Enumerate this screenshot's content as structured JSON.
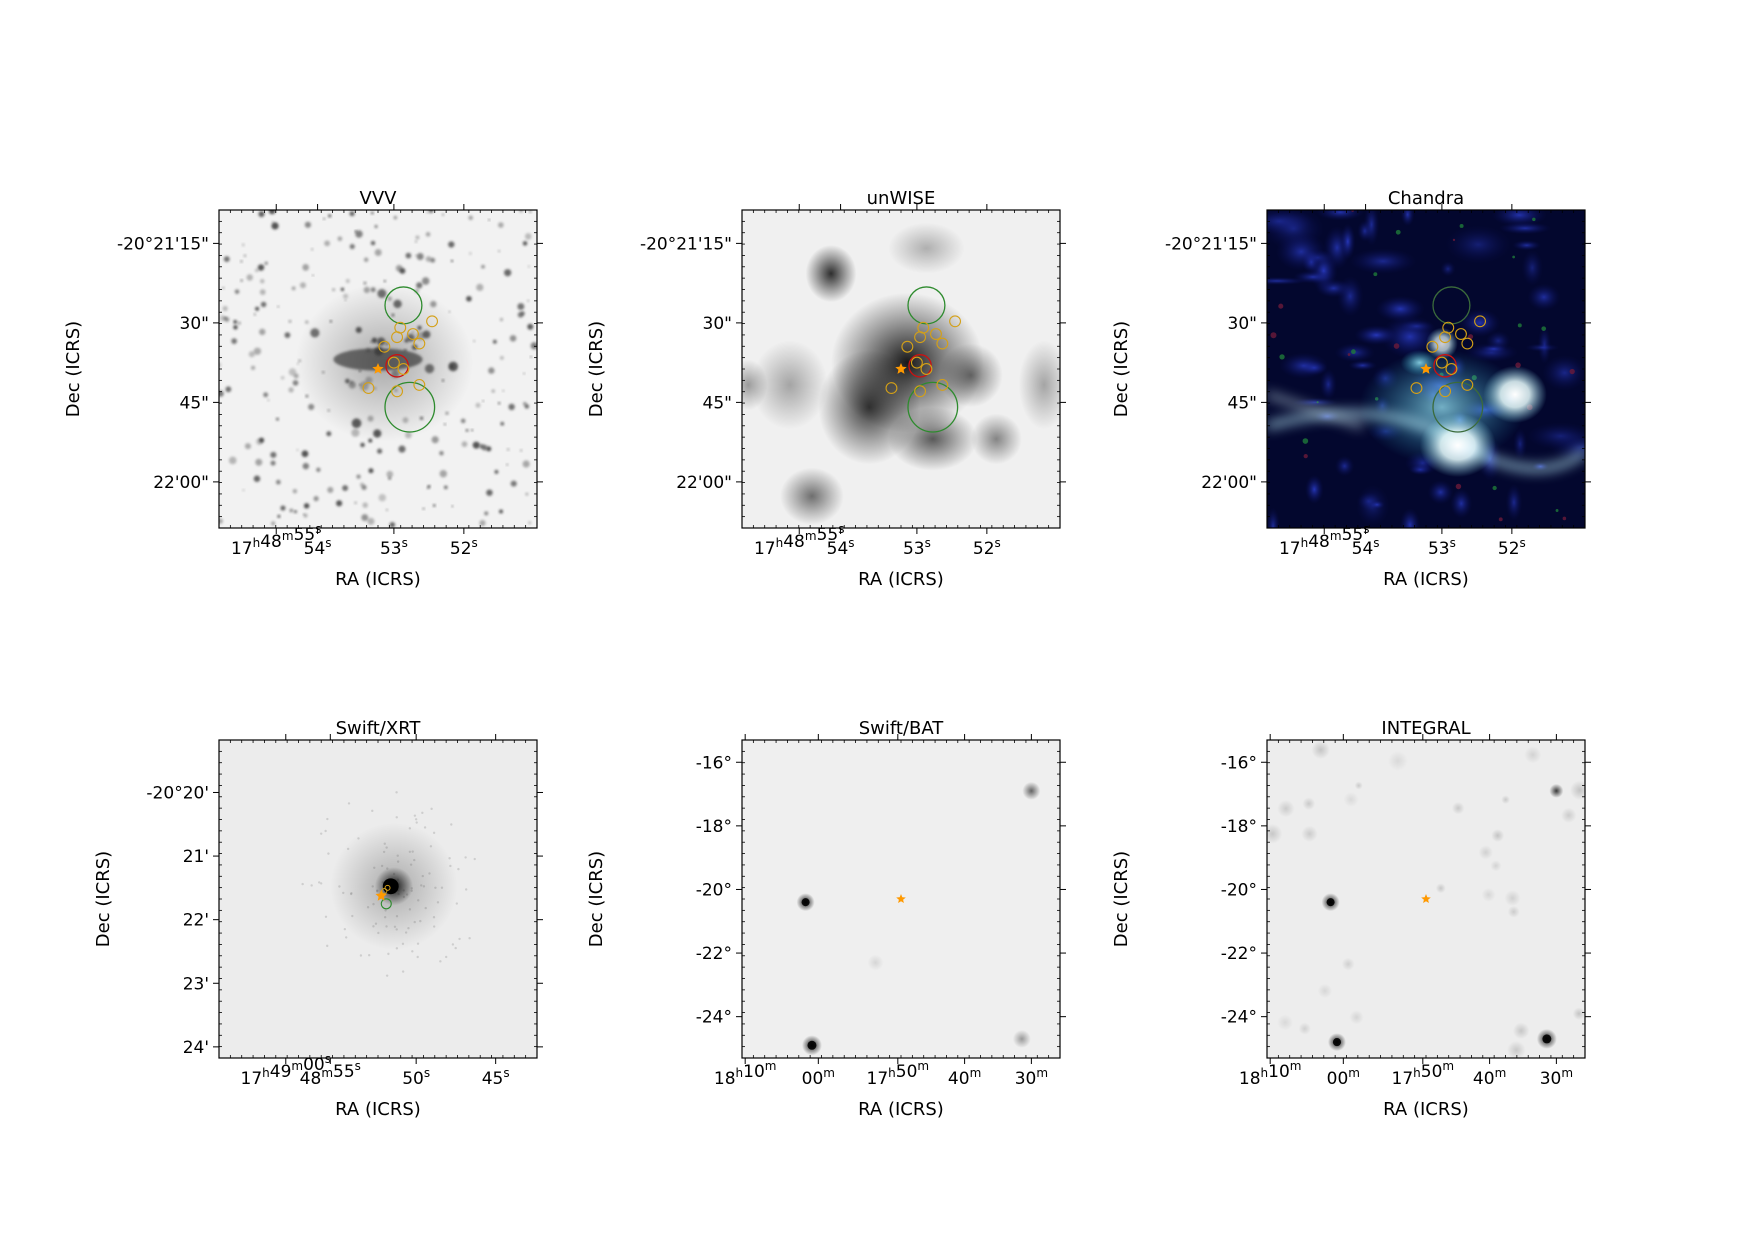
{
  "figure": {
    "panels": [
      {
        "id": "vvv",
        "title": "VVV",
        "image_style": "grayscale-starfield",
        "xlabel": "RA (ICRS)",
        "ylabel": "Dec (ICRS)",
        "yticks": [
          {
            "label": "-20°21'15\"",
            "sup": []
          },
          {
            "label": "30\"",
            "sup": []
          },
          {
            "label": "45\"",
            "sup": []
          },
          {
            "label": "22'00\"",
            "sup": []
          }
        ],
        "xticks": [
          {
            "parts": [
              [
                "17",
                "n"
              ],
              [
                "h",
                "s"
              ],
              [
                "48",
                "n"
              ],
              [
                "m",
                "s"
              ],
              [
                "55",
                "n"
              ],
              [
                "s",
                "s"
              ]
            ]
          },
          {
            "parts": [
              [
                "54",
                "n"
              ],
              [
                "s",
                "s"
              ]
            ]
          },
          {
            "parts": [
              [
                "53",
                "n"
              ],
              [
                "s",
                "s"
              ]
            ]
          },
          {
            "parts": [
              [
                "52",
                "n"
              ],
              [
                "s",
                "s"
              ]
            ]
          }
        ]
      },
      {
        "id": "unwise",
        "title": "unWISE",
        "image_style": "grayscale-smooth",
        "xlabel": "RA (ICRS)",
        "ylabel": "Dec (ICRS)",
        "yticks": [
          {
            "label": "-20°21'15\""
          },
          {
            "label": "30\""
          },
          {
            "label": "45\""
          },
          {
            "label": "22'00\""
          }
        ],
        "xticks": [
          {
            "parts": [
              [
                "17",
                "n"
              ],
              [
                "h",
                "s"
              ],
              [
                "48",
                "n"
              ],
              [
                "m",
                "s"
              ],
              [
                "55",
                "n"
              ],
              [
                "s",
                "s"
              ]
            ]
          },
          {
            "parts": [
              [
                "54",
                "n"
              ],
              [
                "s",
                "s"
              ]
            ]
          },
          {
            "parts": [
              [
                "53",
                "n"
              ],
              [
                "s",
                "s"
              ]
            ]
          },
          {
            "parts": [
              [
                "52",
                "n"
              ],
              [
                "s",
                "s"
              ]
            ]
          }
        ]
      },
      {
        "id": "chandra",
        "title": "Chandra",
        "image_style": "rgb-xray",
        "xlabel": "RA (ICRS)",
        "ylabel": "Dec (ICRS)",
        "yticks": [
          {
            "label": "-20°21'15\""
          },
          {
            "label": "30\""
          },
          {
            "label": "45\""
          },
          {
            "label": "22'00\""
          }
        ],
        "xticks": [
          {
            "parts": [
              [
                "17",
                "n"
              ],
              [
                "h",
                "s"
              ],
              [
                "48",
                "n"
              ],
              [
                "m",
                "s"
              ],
              [
                "55",
                "n"
              ],
              [
                "s",
                "s"
              ]
            ]
          },
          {
            "parts": [
              [
                "54",
                "n"
              ],
              [
                "s",
                "s"
              ]
            ]
          },
          {
            "parts": [
              [
                "53",
                "n"
              ],
              [
                "s",
                "s"
              ]
            ]
          },
          {
            "parts": [
              [
                "52",
                "n"
              ],
              [
                "s",
                "s"
              ]
            ]
          }
        ]
      },
      {
        "id": "swift-xrt",
        "title": "Swift/XRT",
        "image_style": "grayscale-psf",
        "xlabel": "RA (ICRS)",
        "ylabel": "Dec (ICRS)",
        "yticks": [
          {
            "label": "-20°20'"
          },
          {
            "label": "21'"
          },
          {
            "label": "22'"
          },
          {
            "label": "23'"
          },
          {
            "label": "24'"
          }
        ],
        "xticks": [
          {
            "parts": [
              [
                "17",
                "n"
              ],
              [
                "h",
                "s"
              ],
              [
                "49",
                "n"
              ],
              [
                "m",
                "s"
              ],
              [
                "00",
                "n"
              ],
              [
                "s",
                "s"
              ]
            ]
          },
          {
            "parts": [
              [
                "48",
                "n"
              ],
              [
                "m",
                "s"
              ],
              [
                "55",
                "n"
              ],
              [
                "s",
                "s"
              ]
            ]
          },
          {
            "parts": [
              [
                "50",
                "n"
              ],
              [
                "s",
                "s"
              ]
            ]
          },
          {
            "parts": [
              [
                "45",
                "n"
              ],
              [
                "s",
                "s"
              ]
            ]
          }
        ]
      },
      {
        "id": "swift-bat",
        "title": "Swift/BAT",
        "image_style": "grayscale-sparse",
        "xlabel": "RA (ICRS)",
        "ylabel": "Dec (ICRS)",
        "yticks": [
          {
            "label": "-16°"
          },
          {
            "label": "-18°"
          },
          {
            "label": "-20°"
          },
          {
            "label": "-22°"
          },
          {
            "label": "-24°"
          }
        ],
        "xticks": [
          {
            "parts": [
              [
                "18",
                "n"
              ],
              [
                "h",
                "s"
              ],
              [
                "10",
                "n"
              ],
              [
                "m",
                "s"
              ]
            ]
          },
          {
            "parts": [
              [
                "00",
                "n"
              ],
              [
                "m",
                "s"
              ]
            ]
          },
          {
            "parts": [
              [
                "17",
                "n"
              ],
              [
                "h",
                "s"
              ],
              [
                "50",
                "n"
              ],
              [
                "m",
                "s"
              ]
            ]
          },
          {
            "parts": [
              [
                "40",
                "n"
              ],
              [
                "m",
                "s"
              ]
            ]
          },
          {
            "parts": [
              [
                "30",
                "n"
              ],
              [
                "m",
                "s"
              ]
            ]
          }
        ]
      },
      {
        "id": "integral",
        "title": "INTEGRAL",
        "image_style": "grayscale-sparse-noisy",
        "xlabel": "RA (ICRS)",
        "ylabel": "Dec (ICRS)",
        "yticks": [
          {
            "label": "-16°"
          },
          {
            "label": "-18°"
          },
          {
            "label": "-20°"
          },
          {
            "label": "-22°"
          },
          {
            "label": "-24°"
          }
        ],
        "xticks": [
          {
            "parts": [
              [
                "18",
                "n"
              ],
              [
                "h",
                "s"
              ],
              [
                "10",
                "n"
              ],
              [
                "m",
                "s"
              ]
            ]
          },
          {
            "parts": [
              [
                "00",
                "n"
              ],
              [
                "m",
                "s"
              ]
            ]
          },
          {
            "parts": [
              [
                "17",
                "n"
              ],
              [
                "h",
                "s"
              ],
              [
                "50",
                "n"
              ],
              [
                "m",
                "s"
              ]
            ]
          },
          {
            "parts": [
              [
                "40",
                "n"
              ],
              [
                "m",
                "s"
              ]
            ]
          },
          {
            "parts": [
              [
                "30",
                "n"
              ],
              [
                "m",
                "s"
              ]
            ]
          }
        ]
      }
    ],
    "colors": {
      "target_star": "#ff9900",
      "region_green": "#2e8b2e",
      "region_yellow": "#d4a017",
      "region_red": "#cc1111",
      "axis": "#000000"
    },
    "icons": {
      "target": "star-marker-icon"
    }
  }
}
